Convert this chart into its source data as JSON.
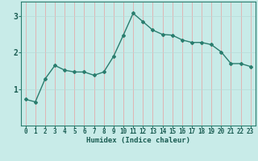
{
  "x": [
    0,
    1,
    2,
    3,
    4,
    5,
    6,
    7,
    8,
    9,
    10,
    11,
    12,
    13,
    14,
    15,
    16,
    17,
    18,
    19,
    20,
    21,
    22,
    23
  ],
  "y": [
    0.72,
    0.65,
    1.28,
    1.65,
    1.52,
    1.47,
    1.47,
    1.38,
    1.47,
    1.9,
    2.48,
    3.08,
    2.85,
    2.62,
    2.5,
    2.48,
    2.35,
    2.28,
    2.28,
    2.22,
    2.02,
    1.7,
    1.7,
    1.62
  ],
  "xlabel": "Humidex (Indice chaleur)",
  "line_color": "#2a7d6e",
  "bg_color": "#c8ebe8",
  "grid_color_v": "#e8a0a0",
  "grid_color_h": "#b8dbd8",
  "axis_color": "#2a7d6e",
  "tick_color": "#1a5c52",
  "ylim": [
    0,
    3.4
  ],
  "xlim": [
    -0.5,
    23.5
  ],
  "yticks": [
    1,
    2,
    3
  ],
  "xticks": [
    0,
    1,
    2,
    3,
    4,
    5,
    6,
    7,
    8,
    9,
    10,
    11,
    12,
    13,
    14,
    15,
    16,
    17,
    18,
    19,
    20,
    21,
    22,
    23
  ],
  "xlabel_fontsize": 6.5,
  "tick_fontsize": 5.5,
  "ytick_fontsize": 7.0
}
